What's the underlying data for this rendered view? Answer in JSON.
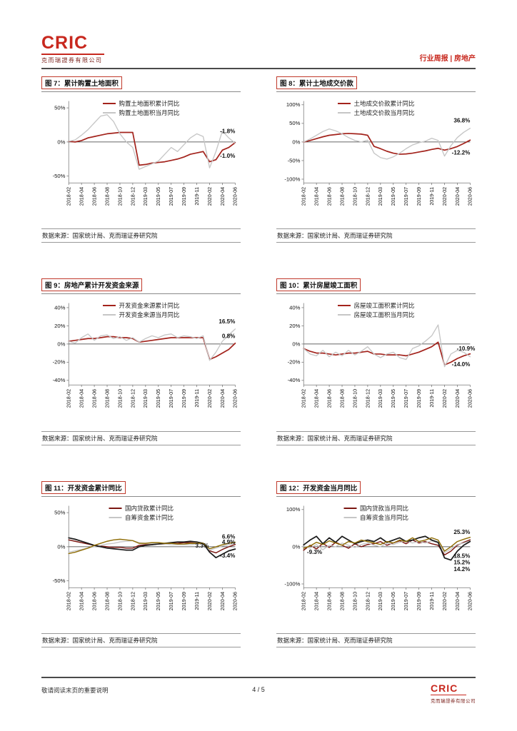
{
  "page_header": {
    "brand": "CRIC",
    "brand_company": "克而瑞證券有限公司",
    "section_label": "行业周报 | 房地产"
  },
  "page_footer": {
    "disclaimer": "敬请阅读末页的重要说明",
    "page_label": "4 / 5",
    "brand": "CRIC",
    "brand_company": "克而瑞證券有限公司"
  },
  "source_text": "数据来源：国家统计局、克而瑞证券研究院",
  "x_tick_labels": [
    "2018-02",
    "2018-04",
    "2018-06",
    "2018-08",
    "2018-10",
    "2018-12",
    "2019-03",
    "2019-05",
    "2019-07",
    "2019-09",
    "2019-11",
    "2020-02",
    "2020-04",
    "2020-06"
  ],
  "chart_data": [
    {
      "type": "line",
      "title": "图 7：累计购置土地面积",
      "legend": [
        {
          "label": "购置土地面积累计同比",
          "color": "#a3231c"
        },
        {
          "label": "购置土地面积当月同比",
          "color": "#c6c6c6"
        }
      ],
      "ylim": [
        -60,
        60
      ],
      "yticks": [
        50,
        0,
        -50
      ],
      "series": [
        {
          "name": "购置土地面积累计同比",
          "color": "#a3231c",
          "width": 1.8,
          "values": [
            1,
            0,
            2,
            6,
            8,
            10,
            12,
            13,
            14,
            14,
            14,
            -34,
            -33,
            -31,
            -30,
            -29,
            -27,
            -25,
            -22,
            -18,
            -16,
            -14,
            -29,
            -26,
            -12,
            -8,
            -1
          ]
        },
        {
          "name": "购置土地面积当月同比",
          "color": "#c6c6c6",
          "width": 1.4,
          "values": [
            1,
            3,
            10,
            18,
            28,
            38,
            40,
            30,
            12,
            0,
            -8,
            -40,
            -36,
            -32,
            -28,
            -18,
            -8,
            -14,
            -4,
            6,
            12,
            8,
            -38,
            -14,
            16,
            6,
            -1.8
          ]
        }
      ],
      "annotations": [
        {
          "text": "-1.8%",
          "x": 1.0,
          "y": 16
        },
        {
          "text": "-1.0%",
          "x": 1.0,
          "y": -20
        }
      ],
      "source": "数据来源：国家统计局、克而瑞证券研究院"
    },
    {
      "type": "line",
      "title": "图 8：累计土地成交价款",
      "legend": [
        {
          "label": "土地成交价款累计同比",
          "color": "#a3231c"
        },
        {
          "label": "土地成交价款当月同比",
          "color": "#c6c6c6"
        }
      ],
      "ylim": [
        -110,
        110
      ],
      "yticks": [
        100,
        50,
        0,
        -50,
        -100
      ],
      "series": [
        {
          "name": "土地成交价款累计同比",
          "color": "#a3231c",
          "width": 1.8,
          "values": [
            0,
            4,
            9,
            14,
            18,
            20,
            22,
            23,
            22,
            21,
            18,
            -12,
            -18,
            -25,
            -30,
            -33,
            -32,
            -30,
            -27,
            -24,
            -20,
            -17,
            -22,
            -18,
            -12.2,
            -4,
            5
          ]
        },
        {
          "name": "土地成交价款当月同比",
          "color": "#c6c6c6",
          "width": 1.4,
          "values": [
            0,
            8,
            18,
            28,
            35,
            30,
            22,
            12,
            4,
            0,
            5,
            -30,
            -42,
            -46,
            -40,
            -30,
            -18,
            -8,
            -2,
            2,
            10,
            4,
            -38,
            -10,
            12,
            26,
            36.8
          ]
        }
      ],
      "annotations": [
        {
          "text": "36.8%",
          "x": 1.0,
          "y": 58
        },
        {
          "text": "-12.2%",
          "x": 1.0,
          "y": -28
        }
      ],
      "source": "数据来源：国家统计局、克而瑞证券研究院"
    },
    {
      "type": "line",
      "title": "图 9：房地产累计开发资金来源",
      "legend": [
        {
          "label": "开发资金来源累计同比",
          "color": "#a3231c"
        },
        {
          "label": "开发资金来源当月同比",
          "color": "#c6c6c6"
        }
      ],
      "ylim": [
        -45,
        45
      ],
      "yticks": [
        40,
        20,
        0,
        -20,
        -40
      ],
      "series": [
        {
          "name": "开发资金来源累计同比",
          "color": "#a3231c",
          "width": 1.8,
          "values": [
            3,
            4,
            5,
            6,
            6,
            7,
            8,
            8,
            7,
            7,
            6,
            2,
            3,
            4,
            5,
            6,
            7,
            7,
            7,
            7,
            7,
            7,
            -17,
            -14,
            -10,
            -6,
            0.8
          ]
        },
        {
          "name": "开发资金来源当月同比",
          "color": "#c6c6c6",
          "width": 1.4,
          "values": [
            3,
            1,
            7,
            11,
            4,
            9,
            10,
            6,
            8,
            4,
            7,
            2,
            6,
            9,
            7,
            10,
            11,
            7,
            9,
            8,
            6,
            9,
            -18,
            -9,
            3,
            10,
            16.5
          ]
        }
      ],
      "annotations": [
        {
          "text": "16.5%",
          "x": 1.0,
          "y": 25
        },
        {
          "text": "0.8%",
          "x": 1.0,
          "y": 9
        }
      ],
      "source": "数据来源：国家统计局、克而瑞证券研究院"
    },
    {
      "type": "line",
      "title": "图 10：累计房屋竣工面积",
      "legend": [
        {
          "label": "房屋竣工面积累计同比",
          "color": "#a3231c"
        },
        {
          "label": "房屋竣工面积当月同比",
          "color": "#c6c6c6"
        }
      ],
      "ylim": [
        -45,
        45
      ],
      "yticks": [
        40,
        20,
        0,
        -20,
        -40
      ],
      "series": [
        {
          "name": "房屋竣工面积累计同比",
          "color": "#a3231c",
          "width": 1.8,
          "values": [
            -5,
            -8,
            -10,
            -10,
            -11,
            -12,
            -11,
            -10,
            -10,
            -9,
            -8,
            -11,
            -11,
            -12,
            -12,
            -12,
            -13,
            -11,
            -9,
            -6,
            -3,
            2,
            -23,
            -20,
            -16,
            -13,
            -10.9
          ]
        },
        {
          "name": "房屋竣工面积当月同比",
          "color": "#c6c6c6",
          "width": 1.4,
          "values": [
            -5,
            -11,
            -13,
            -7,
            -14,
            -9,
            -13,
            -7,
            -12,
            -8,
            -3,
            -11,
            -15,
            -11,
            -9,
            -15,
            -17,
            -5,
            -2,
            3,
            9,
            21,
            -25,
            -11,
            -7,
            -9,
            -14
          ]
        }
      ],
      "annotations": [
        {
          "text": "-10.9%",
          "x": 1.03,
          "y": -5
        },
        {
          "text": "-14.0%",
          "x": 1.0,
          "y": -22
        }
      ],
      "source": "数据来源：国家统计局、克而瑞证券研究院"
    },
    {
      "type": "line",
      "title": "图 11：开发资金累计同比",
      "legend": [
        {
          "label": "国内贷款累计同比",
          "color": "#7b1611"
        },
        {
          "label": "自筹资金累计同比",
          "color": "#c6c6c6"
        }
      ],
      "ylim": [
        -60,
        60
      ],
      "yticks": [
        50,
        0,
        -50
      ],
      "series": [
        {
          "name": "国内贷款累计同比",
          "color": "#7b1611",
          "width": 1.5,
          "values": [
            10,
            8,
            6,
            4,
            2,
            1,
            0,
            -1,
            -1,
            -2,
            -2,
            2,
            3,
            3,
            4,
            4,
            5,
            5,
            6,
            6,
            5,
            5,
            -6,
            -9,
            -4,
            0,
            3.3
          ]
        },
        {
          "name": "自筹资金累计同比",
          "color": "#c6c6c6",
          "width": 1.4,
          "values": [
            -8,
            -6,
            -4,
            -2,
            0,
            2,
            4,
            5,
            7,
            8,
            9,
            6,
            5,
            5,
            4,
            4,
            3,
            3,
            3,
            3,
            4,
            4,
            -5,
            -2,
            1,
            3,
            4.9
          ]
        },
        {
          "name": "",
          "color": "#1a1a1a",
          "width": 1.8,
          "values": [
            13,
            11,
            8,
            5,
            2,
            0,
            -2,
            -3,
            -4,
            -5,
            -5,
            0,
            2,
            3,
            4,
            5,
            6,
            7,
            7,
            8,
            7,
            5,
            -8,
            -16,
            -11,
            -6,
            -3.4
          ]
        },
        {
          "name": "",
          "color": "#8f6d06",
          "width": 1.5,
          "values": [
            -10,
            -8,
            -5,
            -2,
            2,
            5,
            8,
            10,
            11,
            10,
            9,
            5,
            5,
            6,
            6,
            5,
            5,
            4,
            4,
            5,
            5,
            5,
            -3,
            0,
            3,
            5,
            6.6
          ]
        }
      ],
      "annotations": [
        {
          "text": "6.6%",
          "x": 1.0,
          "y": 15
        },
        {
          "text": "4.9%",
          "x": 1.0,
          "y": 7
        },
        {
          "text": "3.3%",
          "x": 0.84,
          "y": 2
        },
        {
          "text": "-3.4%",
          "x": 1.0,
          "y": -13
        }
      ],
      "source": "数据来源：国家统计局、克而瑞证券研究院"
    },
    {
      "type": "line",
      "title": "图 12：开发资金当月同比",
      "legend": [
        {
          "label": "国内贷款当月同比",
          "color": "#7b1611"
        },
        {
          "label": "自筹资金当月同比",
          "color": "#c6c6c6"
        }
      ],
      "ylim": [
        -110,
        110
      ],
      "yticks": [
        100,
        0,
        -100
      ],
      "series": [
        {
          "name": "国内贷款当月同比",
          "color": "#7b1611",
          "width": 1.5,
          "values": [
            -9.3,
            4,
            -6,
            9,
            -2,
            12,
            4,
            -4,
            8,
            0,
            6,
            8,
            14,
            4,
            10,
            16,
            8,
            18,
            10,
            14,
            8,
            4,
            -22,
            -12,
            4,
            12,
            18.5
          ]
        },
        {
          "name": "自筹资金当月同比",
          "color": "#c6c6c6",
          "width": 1.4,
          "values": [
            2,
            -4,
            6,
            -8,
            4,
            0,
            10,
            4,
            -2,
            6,
            10,
            4,
            0,
            10,
            6,
            12,
            16,
            10,
            14,
            10,
            16,
            10,
            -16,
            -6,
            6,
            10,
            15.2
          ]
        },
        {
          "name": "",
          "color": "#1a1a1a",
          "width": 1.8,
          "values": [
            5,
            18,
            28,
            8,
            24,
            12,
            28,
            18,
            8,
            14,
            18,
            14,
            24,
            12,
            18,
            24,
            14,
            18,
            24,
            28,
            18,
            12,
            -30,
            -36,
            -12,
            4,
            14.2
          ]
        },
        {
          "name": "",
          "color": "#8f6d06",
          "width": 1.5,
          "values": [
            -4,
            2,
            12,
            6,
            16,
            10,
            4,
            14,
            10,
            18,
            14,
            10,
            6,
            14,
            10,
            18,
            14,
            24,
            14,
            18,
            24,
            18,
            -12,
            0,
            14,
            20,
            25.3
          ]
        }
      ],
      "annotations": [
        {
          "text": "25.3%",
          "x": 1.0,
          "y": 40
        },
        {
          "text": "18.5%",
          "x": 1.0,
          "y": -24
        },
        {
          "text": "15.2%",
          "x": 1.0,
          "y": -42
        },
        {
          "text": "14.2%",
          "x": 1.0,
          "y": -60
        },
        {
          "text": "-9.3%",
          "x": 0.02,
          "y": -14
        }
      ],
      "source": "数据来源：国家统计局、克而瑞证券研究院"
    }
  ]
}
